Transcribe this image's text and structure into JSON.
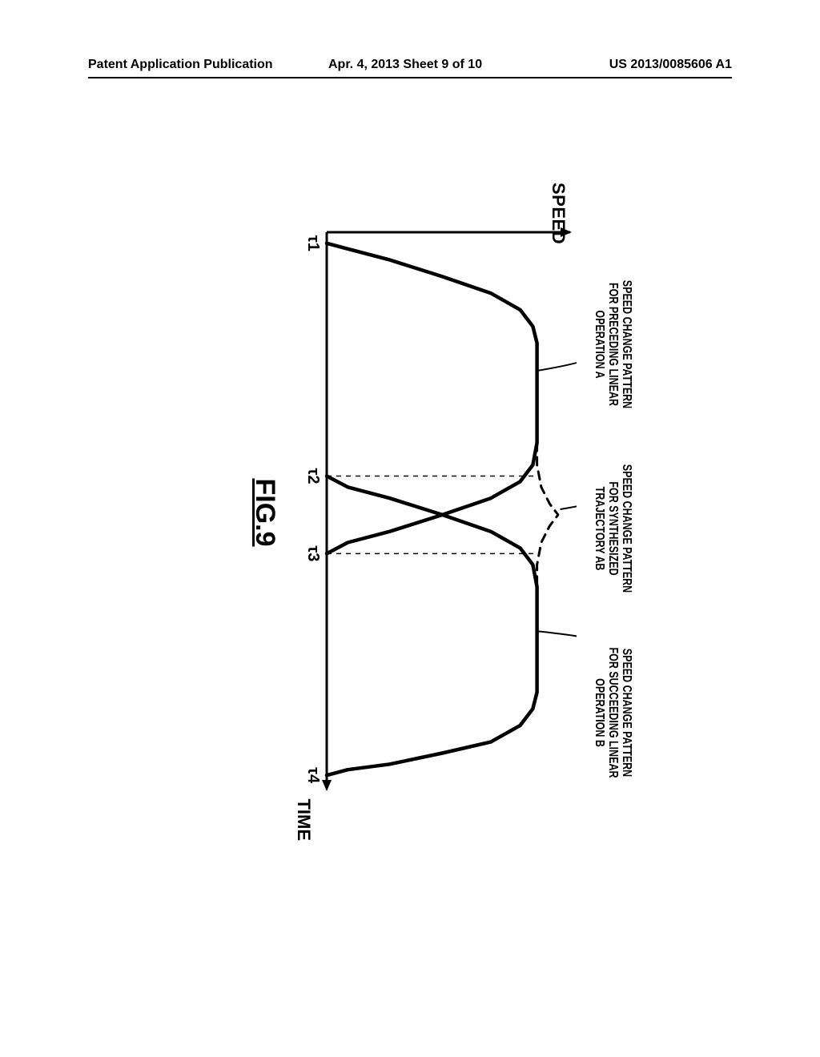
{
  "header": {
    "left": "Patent Application Publication",
    "mid": "Apr. 4, 2013   Sheet 9 of 10",
    "right": "US 2013/0085606 A1"
  },
  "figure": {
    "type": "line",
    "title": "FIG.9",
    "ylabel": "SPEED",
    "xlabel": "TIME",
    "callouts": {
      "A": "SPEED CHANGE PATTERN\nFOR PRECEDING LINEAR\nOPERATION A",
      "AB": "SPEED CHANGE PATTERN\nFOR SYNTHESIZED\nTRAJECTORY AB",
      "B": "SPEED CHANGE PATTERN\nFOR SUCCEEDING LINEAR\nOPERATION B"
    },
    "x_ticks": [
      "τ1",
      "τ2",
      "τ3",
      "τ4"
    ],
    "x_tick_positions": [
      0.02,
      0.44,
      0.58,
      0.98
    ],
    "ylim": [
      0,
      1.15
    ],
    "curves": {
      "A": {
        "color": "#000000",
        "width": 4.5,
        "points": [
          [
            0.02,
            0.0
          ],
          [
            0.03,
            0.1
          ],
          [
            0.05,
            0.3
          ],
          [
            0.08,
            0.55
          ],
          [
            0.11,
            0.78
          ],
          [
            0.14,
            0.92
          ],
          [
            0.17,
            0.98
          ],
          [
            0.2,
            1.0
          ],
          [
            0.3,
            1.0
          ],
          [
            0.38,
            1.0
          ],
          [
            0.42,
            0.98
          ],
          [
            0.45,
            0.92
          ],
          [
            0.48,
            0.78
          ],
          [
            0.51,
            0.55
          ],
          [
            0.54,
            0.3
          ],
          [
            0.56,
            0.1
          ],
          [
            0.58,
            0.0
          ]
        ]
      },
      "B": {
        "color": "#000000",
        "width": 4.5,
        "points": [
          [
            0.44,
            0.0
          ],
          [
            0.46,
            0.1
          ],
          [
            0.48,
            0.3
          ],
          [
            0.51,
            0.55
          ],
          [
            0.54,
            0.78
          ],
          [
            0.57,
            0.92
          ],
          [
            0.6,
            0.98
          ],
          [
            0.64,
            1.0
          ],
          [
            0.75,
            1.0
          ],
          [
            0.83,
            1.0
          ],
          [
            0.86,
            0.98
          ],
          [
            0.89,
            0.92
          ],
          [
            0.92,
            0.78
          ],
          [
            0.94,
            0.55
          ],
          [
            0.96,
            0.3
          ],
          [
            0.97,
            0.1
          ],
          [
            0.98,
            0.0
          ]
        ]
      },
      "AB": {
        "color": "#000000",
        "width": 3,
        "dash": "10,8",
        "points": [
          [
            0.38,
            1.0
          ],
          [
            0.42,
            1.0
          ],
          [
            0.46,
            1.02
          ],
          [
            0.49,
            1.06
          ],
          [
            0.51,
            1.1
          ],
          [
            0.53,
            1.06
          ],
          [
            0.56,
            1.02
          ],
          [
            0.6,
            1.0
          ],
          [
            0.64,
            1.0
          ]
        ]
      }
    },
    "helpers": {
      "dash": "6,6",
      "color": "#000000",
      "width": 1.5,
      "lines": [
        {
          "x": 0.44,
          "y0": 0.0,
          "y1": 1.0
        },
        {
          "x": 0.58,
          "y0": 0.0,
          "y1": 1.0
        }
      ]
    },
    "leaders": {
      "A": {
        "from": [
          0.21,
          1.32
        ],
        "to": [
          0.25,
          1.0
        ]
      },
      "AB": {
        "from": [
          0.475,
          1.32
        ],
        "to": [
          0.5,
          1.11
        ]
      },
      "B": {
        "from": [
          0.745,
          1.32
        ],
        "to": [
          0.72,
          1.0
        ]
      }
    },
    "background_color": "#ffffff",
    "axis_color": "#000000",
    "axis_width": 3
  }
}
